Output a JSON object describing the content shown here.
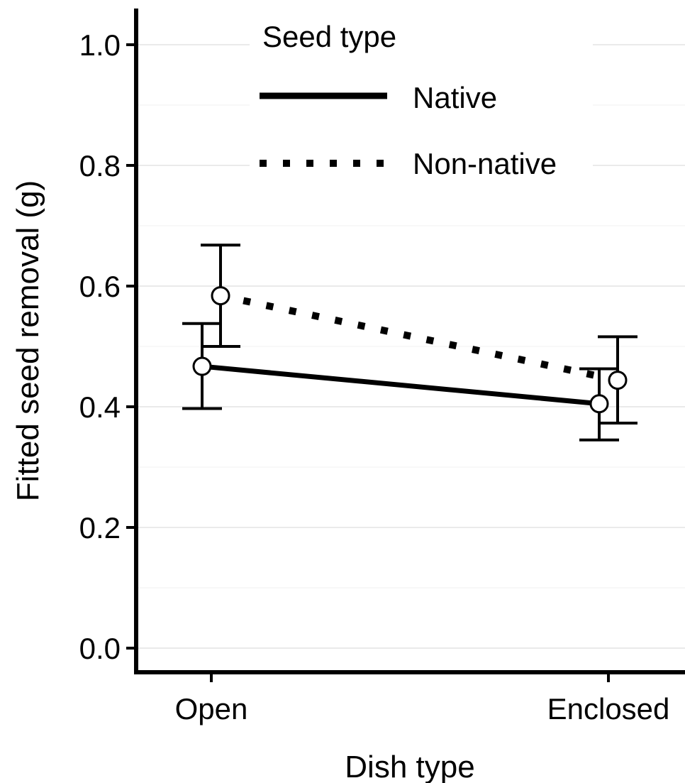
{
  "chart_data": {
    "type": "line",
    "title": "",
    "xlabel": "Dish type",
    "ylabel": "Fitted seed removal (g)",
    "categories": [
      "Open",
      "Enclosed"
    ],
    "ylim": [
      -0.04,
      1.06
    ],
    "yticks": [
      "0.0",
      "0.2",
      "0.4",
      "0.6",
      "0.8",
      "1.0"
    ],
    "grid": "horizontal-light",
    "legend": {
      "title": "Seed type",
      "placement": "top-left-inside"
    },
    "series": [
      {
        "name": "Native",
        "line_style": "solid",
        "color": "#000000",
        "values": [
          0.467,
          0.405
        ],
        "lower": [
          0.397,
          0.345
        ],
        "upper": [
          0.538,
          0.463
        ]
      },
      {
        "name": "Non-native",
        "line_style": "dotted",
        "color": "#000000",
        "values": [
          0.584,
          0.444
        ],
        "lower": [
          0.5,
          0.373
        ],
        "upper": [
          0.668,
          0.516
        ]
      }
    ]
  }
}
